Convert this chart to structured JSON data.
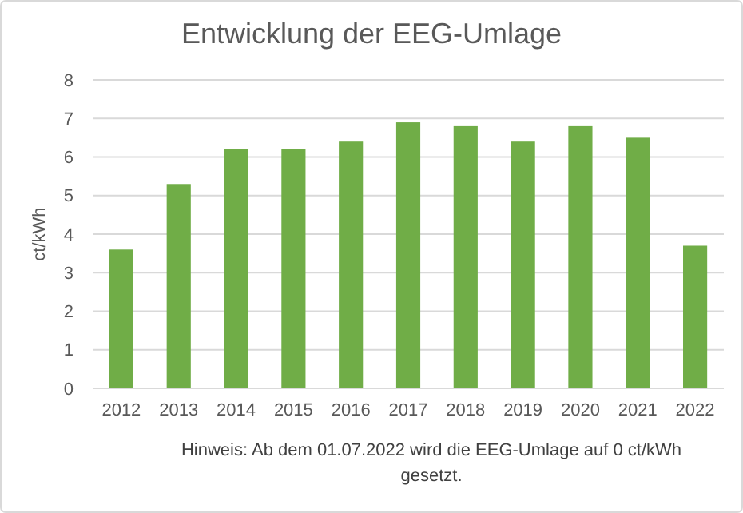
{
  "chart_data": {
    "type": "bar",
    "title": "Entwicklung der EEG-Umlage",
    "ylabel": "ct/kWh",
    "categories": [
      "2012",
      "2013",
      "2014",
      "2015",
      "2016",
      "2017",
      "2018",
      "2019",
      "2020",
      "2021",
      "2022"
    ],
    "values": [
      3.6,
      5.3,
      6.2,
      6.2,
      6.4,
      6.9,
      6.8,
      6.4,
      6.8,
      6.5,
      3.7
    ],
    "color": "#70ad47",
    "ylim": [
      0,
      8
    ],
    "yticks": [
      0,
      1,
      2,
      3,
      4,
      5,
      6,
      7,
      8
    ],
    "grid": "y",
    "annotations": [
      "Hinweis: Ab dem 01.07.2022 wird die EEG-Umlage auf 0 ct/kWh gesetzt."
    ]
  }
}
